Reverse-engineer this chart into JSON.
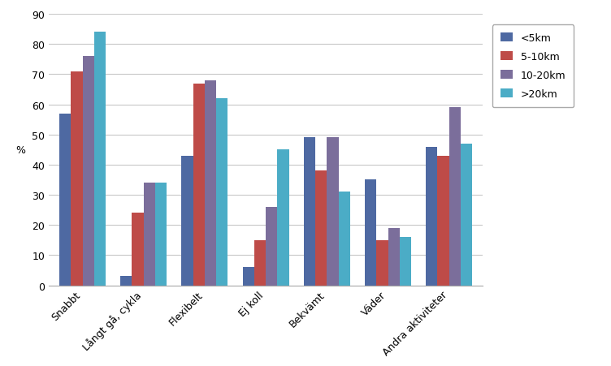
{
  "categories": [
    "Snabbt",
    "Långt gå, cykla",
    "Flexibelt",
    "Ej koll",
    "Bekvämt",
    "Väder",
    "Andra aktiviteter"
  ],
  "series": {
    "<5km": [
      57,
      3,
      43,
      6,
      49,
      35,
      46
    ],
    "5-10km": [
      71,
      24,
      67,
      15,
      38,
      15,
      43
    ],
    "10-20km": [
      76,
      34,
      68,
      26,
      49,
      19,
      59
    ],
    ">20km": [
      84,
      34,
      62,
      45,
      31,
      16,
      47
    ]
  },
  "series_order": [
    "<5km",
    "5-10km",
    "10-20km",
    ">20km"
  ],
  "colors": {
    "<5km": "#4E69A2",
    "5-10km": "#BE4B48",
    "10-20km": "#7B6E9B",
    ">20km": "#4BACC6"
  },
  "ylabel": "%",
  "ylim": [
    0,
    90
  ],
  "yticks": [
    0,
    10,
    20,
    30,
    40,
    50,
    60,
    70,
    80,
    90
  ],
  "bar_width": 0.19,
  "background_color": "#ffffff",
  "grid_color": "#c8c8c8",
  "tick_fontsize": 9,
  "label_fontsize": 9,
  "legend_fontsize": 9
}
